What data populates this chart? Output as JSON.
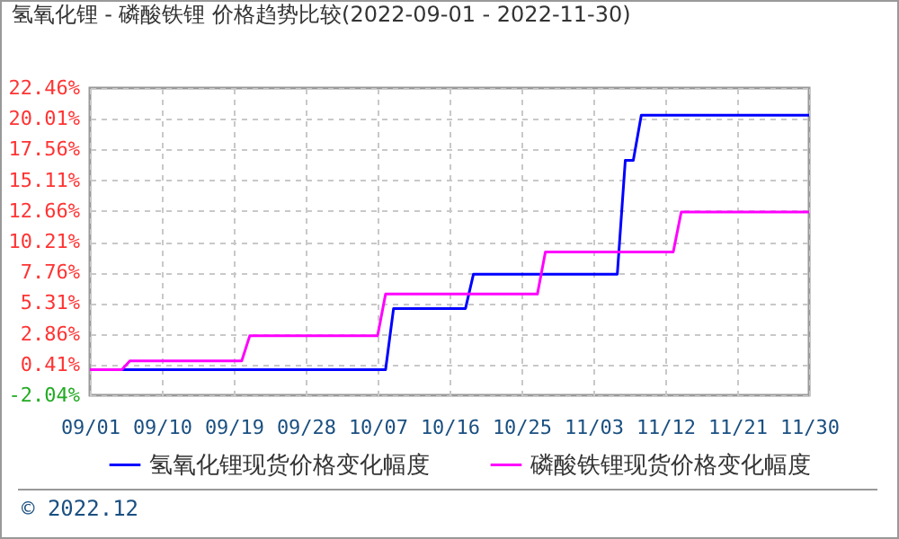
{
  "chart_data": {
    "type": "line",
    "title": "氢氧化锂 - 磷酸铁锂 价格趋势比较(2022-09-01 - 2022-11-30)",
    "series": [
      {
        "name": "氢氧化锂现货价格变化幅度",
        "color": "#0000ff",
        "x": [
          "2022-09-01",
          "2022-10-08",
          "2022-10-09",
          "2022-10-18",
          "2022-10-19",
          "2022-11-06",
          "2022-11-07",
          "2022-11-08",
          "2022-11-09",
          "2022-11-30"
        ],
        "values": [
          0,
          0,
          4.88,
          4.88,
          7.62,
          7.62,
          16.7,
          16.7,
          20.3,
          20.3
        ]
      },
      {
        "name": "磷酸铁锂现货价格变化幅度",
        "color": "#ff00ff",
        "x": [
          "2022-09-01",
          "2022-09-05",
          "2022-09-06",
          "2022-09-20",
          "2022-09-21",
          "2022-10-07",
          "2022-10-08",
          "2022-10-27",
          "2022-10-28",
          "2022-11-13",
          "2022-11-14",
          "2022-11-30"
        ],
        "values": [
          0,
          0,
          0.7,
          0.7,
          2.7,
          2.7,
          6.03,
          6.03,
          9.39,
          9.39,
          12.57,
          12.57
        ]
      }
    ],
    "xlim": [
      "2022-09-01",
      "2022-11-30"
    ],
    "xticks": [
      {
        "value": "2022-09-01",
        "label": "09/01"
      },
      {
        "value": "2022-09-10",
        "label": "09/10"
      },
      {
        "value": "2022-09-19",
        "label": "09/19"
      },
      {
        "value": "2022-09-28",
        "label": "09/28"
      },
      {
        "value": "2022-10-07",
        "label": "10/07"
      },
      {
        "value": "2022-10-16",
        "label": "10/16"
      },
      {
        "value": "2022-10-25",
        "label": "10/25"
      },
      {
        "value": "2022-11-03",
        "label": "11/03"
      },
      {
        "value": "2022-11-12",
        "label": "11/12"
      },
      {
        "value": "2022-11-21",
        "label": "11/21"
      },
      {
        "value": "2022-11-30",
        "label": "11/30"
      }
    ],
    "ylim": [
      -2.04,
      22.46
    ],
    "yticks": [
      {
        "value": -2.04,
        "label": "-2.04%"
      },
      {
        "value": 0.41,
        "label": "0.41%"
      },
      {
        "value": 2.86,
        "label": "2.86%"
      },
      {
        "value": 5.31,
        "label": "5.31%"
      },
      {
        "value": 7.76,
        "label": "7.76%"
      },
      {
        "value": 10.21,
        "label": "10.21%"
      },
      {
        "value": 12.66,
        "label": "12.66%"
      },
      {
        "value": 15.11,
        "label": "15.11%"
      },
      {
        "value": 17.56,
        "label": "17.56%"
      },
      {
        "value": 20.01,
        "label": "20.01%"
      },
      {
        "value": 22.46,
        "label": "22.46%"
      }
    ],
    "grid": true,
    "legend": "bottom",
    "line_style": "solid",
    "annotations": [
      "© 2022.12"
    ]
  }
}
